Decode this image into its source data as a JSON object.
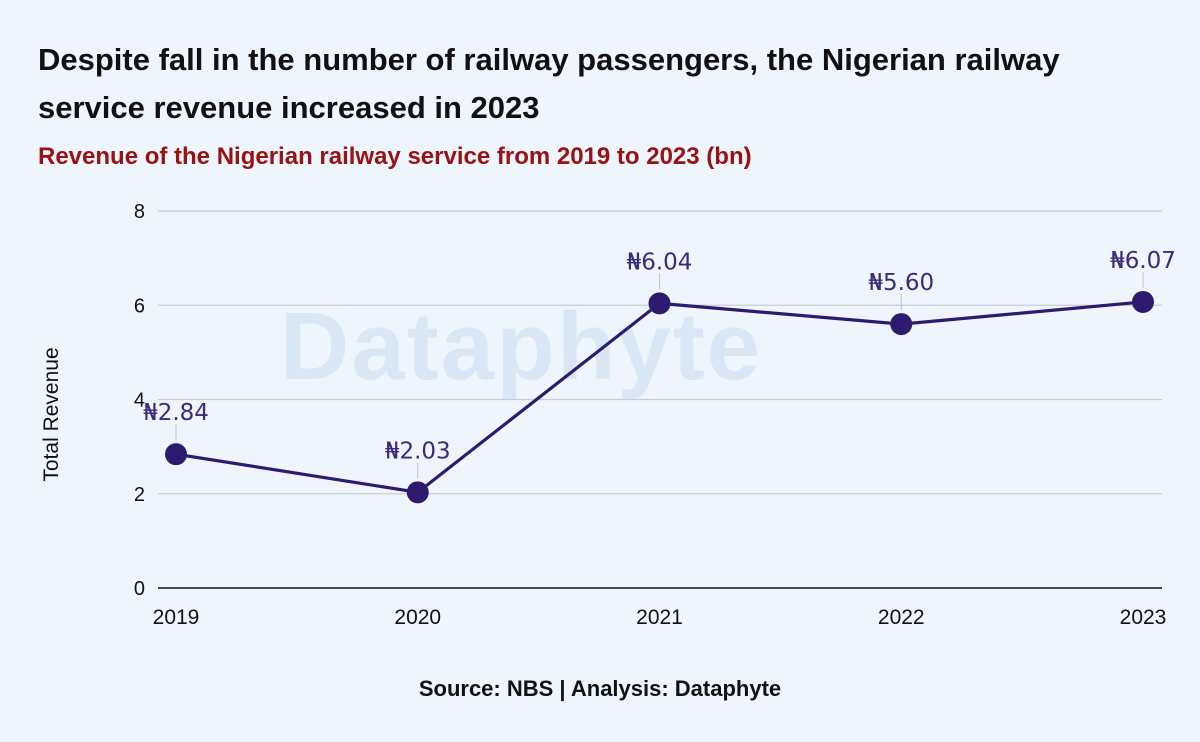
{
  "header": {
    "title": "Despite fall in the number of railway passengers, the Nigerian railway service revenue increased in 2023",
    "subtitle": "Revenue of the Nigerian railway service from 2019 to 2023 (bn)"
  },
  "watermark": "Dataphyte",
  "source": "Source: NBS | Analysis: Dataphyte",
  "chart_data": {
    "type": "line",
    "title": "Revenue of the Nigerian railway service from 2019 to 2023 (bn)",
    "xlabel": "",
    "ylabel": "Total Revenue",
    "categories": [
      "2019",
      "2020",
      "2021",
      "2022",
      "2023"
    ],
    "series": [
      {
        "values": [
          2.84,
          2.03,
          6.04,
          5.6,
          6.07
        ],
        "labels": [
          "₦2.84",
          "₦2.03",
          "₦6.04",
          "₦5.60",
          "₦6.07"
        ]
      }
    ],
    "ylim": [
      0,
      8
    ],
    "yticks": [
      "0",
      "2",
      "4",
      "6",
      "8"
    ],
    "grid": "horizontal",
    "legend": "none",
    "colors": {
      "line": "#2e1a6e",
      "point": "#2e1a6e",
      "label": "#3c2a7a",
      "grid": "#c8ccd4",
      "axis": "#111111"
    }
  }
}
